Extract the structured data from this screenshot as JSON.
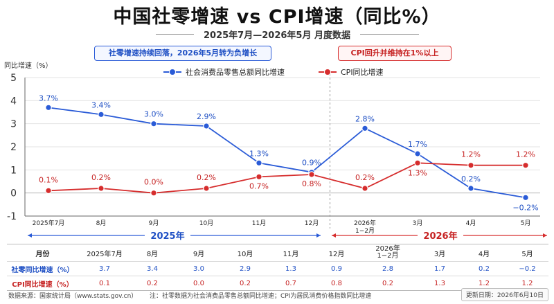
{
  "title": "中国社零增速 vs CPI增速（同比%）",
  "subtitle": "2025年7月—2026年5月  月度数据",
  "callout_left": "社零增速持续回落，2026年5月转为负增长",
  "callout_right": "CPI回升并维持在1%以上",
  "chart_data": {
    "type": "line",
    "ylabel": "同比增速（%）",
    "ylim": [
      -1,
      5
    ],
    "yticks": [
      -1,
      0,
      1,
      2,
      3,
      4,
      5
    ],
    "grid": true,
    "legend_position": "top",
    "categories": [
      "2025年7月",
      "8月",
      "9月",
      "10月",
      "11月",
      "12月",
      "2026年 1−2月",
      "3月",
      "4月",
      "5月"
    ],
    "series": [
      {
        "name": "社会消费品零售总额同比增速",
        "color": "#2a5bd7",
        "values": [
          3.7,
          3.4,
          3.0,
          2.9,
          1.3,
          0.9,
          2.8,
          1.7,
          0.2,
          -0.2
        ],
        "labels": [
          "3.7%",
          "3.4%",
          "3.0%",
          "2.9%",
          "1.3%",
          "0.9%",
          "2.8%",
          "1.7%",
          "0.2%",
          "−0.2%"
        ]
      },
      {
        "name": "CPI同比增速",
        "color": "#d62d2d",
        "values": [
          0.1,
          0.2,
          0.0,
          0.2,
          0.7,
          0.8,
          0.2,
          1.3,
          1.2,
          1.2
        ],
        "labels": [
          "0.1%",
          "0.2%",
          "0.0%",
          "0.2%",
          "0.7%",
          "0.8%",
          "0.2%",
          "1.3%",
          "1.2%",
          "1.2%"
        ]
      }
    ],
    "year_2025": "2025年",
    "year_2026": "2026年"
  },
  "table": {
    "header_label": "月份",
    "months": [
      "2025年7月",
      "8月",
      "9月",
      "10月",
      "11月",
      "12月",
      "2026年\n1−2月",
      "3月",
      "4月",
      "5月"
    ],
    "retail_label": "社零同比增速（%）",
    "retail_values": [
      "3.7",
      "3.4",
      "3.0",
      "2.9",
      "1.3",
      "0.9",
      "2.8",
      "1.7",
      "0.2",
      "−0.2"
    ],
    "cpi_label": "CPI同比增速（%）",
    "cpi_values": [
      "0.1",
      "0.2",
      "0.0",
      "0.2",
      "0.7",
      "0.8",
      "0.2",
      "1.3",
      "1.2",
      "1.2"
    ]
  },
  "footer": {
    "source": "数据来源：国家统计局（www.stats.gov.cn）",
    "note": "注：社零数据为社会消费品零售总额同比增速；CPI为居民消费价格指数同比增速",
    "updated": "更新日期：2026年6月10日"
  }
}
